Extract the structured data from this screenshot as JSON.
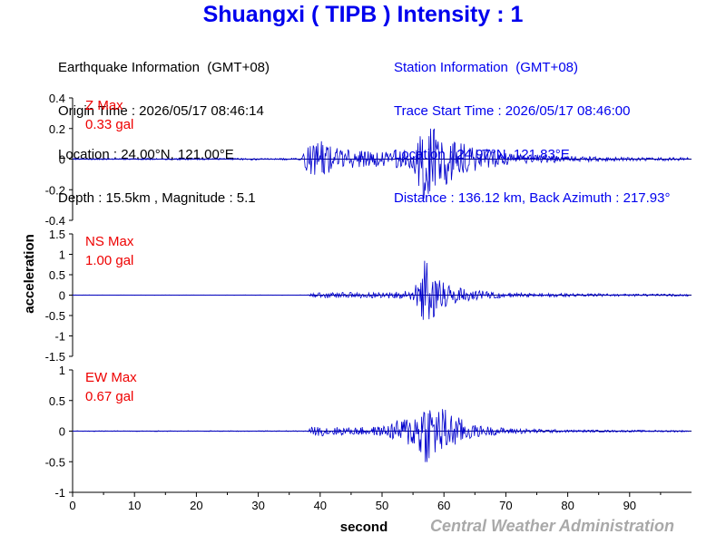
{
  "title": "Shuangxi ( TIPB ) Intensity : 1",
  "earthquake_info": {
    "heading": "Earthquake Information  (GMT+08)",
    "origin_time": "Origin Time : 2026/05/17 08:46:14",
    "location": "Location : 24.00°N, 121.00°E",
    "depth_magnitude": "Depth : 15.5km , Magnitude : 5.1"
  },
  "station_info": {
    "heading": "Station Information  (GMT+08)",
    "trace_start": "Trace Start Time : 2026/05/17 08:46:00",
    "location": "Location : 24.97°N, 121.83°E",
    "distance": "Distance : 136.12 km, Back Azimuth : 217.93°"
  },
  "footer": "Central Weather Administration",
  "chart_data": {
    "type": "line",
    "xlabel": "second",
    "ylabel": "acceleration",
    "xlim": [
      0,
      100
    ],
    "x_ticks": [
      0,
      10,
      20,
      30,
      40,
      50,
      60,
      70,
      80,
      90
    ],
    "line_color": "#0000cc",
    "label_color": "#ee0000",
    "panels": [
      {
        "name": "Z",
        "max_label": "Z Max",
        "max_value": "0.33 gal",
        "ylim": [
          -0.4,
          0.4
        ],
        "y_ticks": [
          0.4,
          0.2,
          0,
          -0.2,
          -0.4
        ],
        "y_tick_labels": [
          "0.4",
          "0.2",
          "0",
          "-0.2",
          "-0.4"
        ],
        "envelope": [
          [
            0,
            0.004
          ],
          [
            37,
            0.006
          ],
          [
            38,
            0.1
          ],
          [
            40,
            0.12
          ],
          [
            42,
            0.09
          ],
          [
            45,
            0.06
          ],
          [
            50,
            0.05
          ],
          [
            55,
            0.07
          ],
          [
            56,
            0.2
          ],
          [
            57,
            0.3
          ],
          [
            58,
            0.22
          ],
          [
            60,
            0.18
          ],
          [
            62,
            0.12
          ],
          [
            65,
            0.08
          ],
          [
            70,
            0.04
          ],
          [
            80,
            0.02
          ],
          [
            90,
            0.012
          ],
          [
            99.5,
            0.01
          ]
        ]
      },
      {
        "name": "NS",
        "max_label": "NS Max",
        "max_value": "1.00 gal",
        "ylim": [
          -1.5,
          1.5
        ],
        "y_ticks": [
          1.5,
          1,
          0.5,
          0,
          -0.5,
          -1,
          -1.5
        ],
        "y_tick_labels": [
          "1.5",
          "1",
          "0.5",
          "0",
          "-0.5",
          "-1",
          "-1.5"
        ],
        "envelope": [
          [
            0,
            0.004
          ],
          [
            38,
            0.005
          ],
          [
            39,
            0.06
          ],
          [
            45,
            0.07
          ],
          [
            52,
            0.08
          ],
          [
            55,
            0.12
          ],
          [
            56,
            0.5
          ],
          [
            57,
            0.95
          ],
          [
            58,
            0.65
          ],
          [
            60,
            0.35
          ],
          [
            62,
            0.2
          ],
          [
            65,
            0.12
          ],
          [
            70,
            0.06
          ],
          [
            80,
            0.04
          ],
          [
            90,
            0.03
          ],
          [
            99.5,
            0.03
          ]
        ]
      },
      {
        "name": "EW",
        "max_label": "EW Max",
        "max_value": "0.67 gal",
        "ylim": [
          -1,
          1
        ],
        "y_ticks": [
          1,
          0.5,
          0,
          -0.5,
          -1
        ],
        "y_tick_labels": [
          "1",
          "0.5",
          "0",
          "-0.5",
          "-1"
        ],
        "envelope": [
          [
            0,
            0.005
          ],
          [
            38,
            0.006
          ],
          [
            38.5,
            0.07
          ],
          [
            40,
            0.08
          ],
          [
            45,
            0.06
          ],
          [
            50,
            0.08
          ],
          [
            53,
            0.2
          ],
          [
            55,
            0.28
          ],
          [
            57,
            0.55
          ],
          [
            58,
            0.45
          ],
          [
            60,
            0.4
          ],
          [
            62,
            0.25
          ],
          [
            65,
            0.1
          ],
          [
            70,
            0.05
          ],
          [
            80,
            0.02
          ],
          [
            90,
            0.015
          ],
          [
            99.5,
            0.015
          ]
        ]
      }
    ]
  }
}
